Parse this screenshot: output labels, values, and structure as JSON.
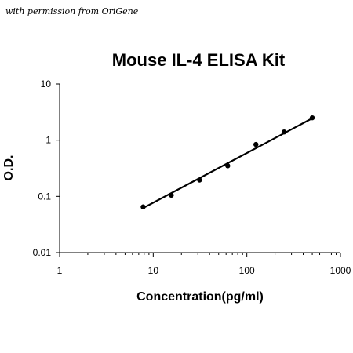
{
  "watermark": "with permission from OriGene",
  "chart_data": {
    "type": "scatter",
    "title": "Mouse IL-4 ELISA Kit",
    "xlabel": "Concentration(pg/ml)",
    "ylabel": "O.D.",
    "xscale": "log",
    "yscale": "log",
    "xlim": [
      1,
      1000
    ],
    "ylim": [
      0.01,
      10
    ],
    "x_ticks": [
      "1",
      "10",
      "100",
      "1000"
    ],
    "y_ticks": [
      "0.01",
      "0.1",
      "1",
      "10"
    ],
    "grid": false,
    "legend": "none",
    "series": [
      {
        "x": [
          7.8,
          15.6,
          31.25,
          62.5,
          125,
          250,
          500
        ],
        "y": [
          0.065,
          0.105,
          0.195,
          0.35,
          0.84,
          1.4,
          2.5
        ],
        "marker_color": "#000000"
      }
    ],
    "fit_line": {
      "x": [
        7.8,
        500
      ],
      "y": [
        0.062,
        2.45
      ],
      "color": "#000000"
    }
  }
}
